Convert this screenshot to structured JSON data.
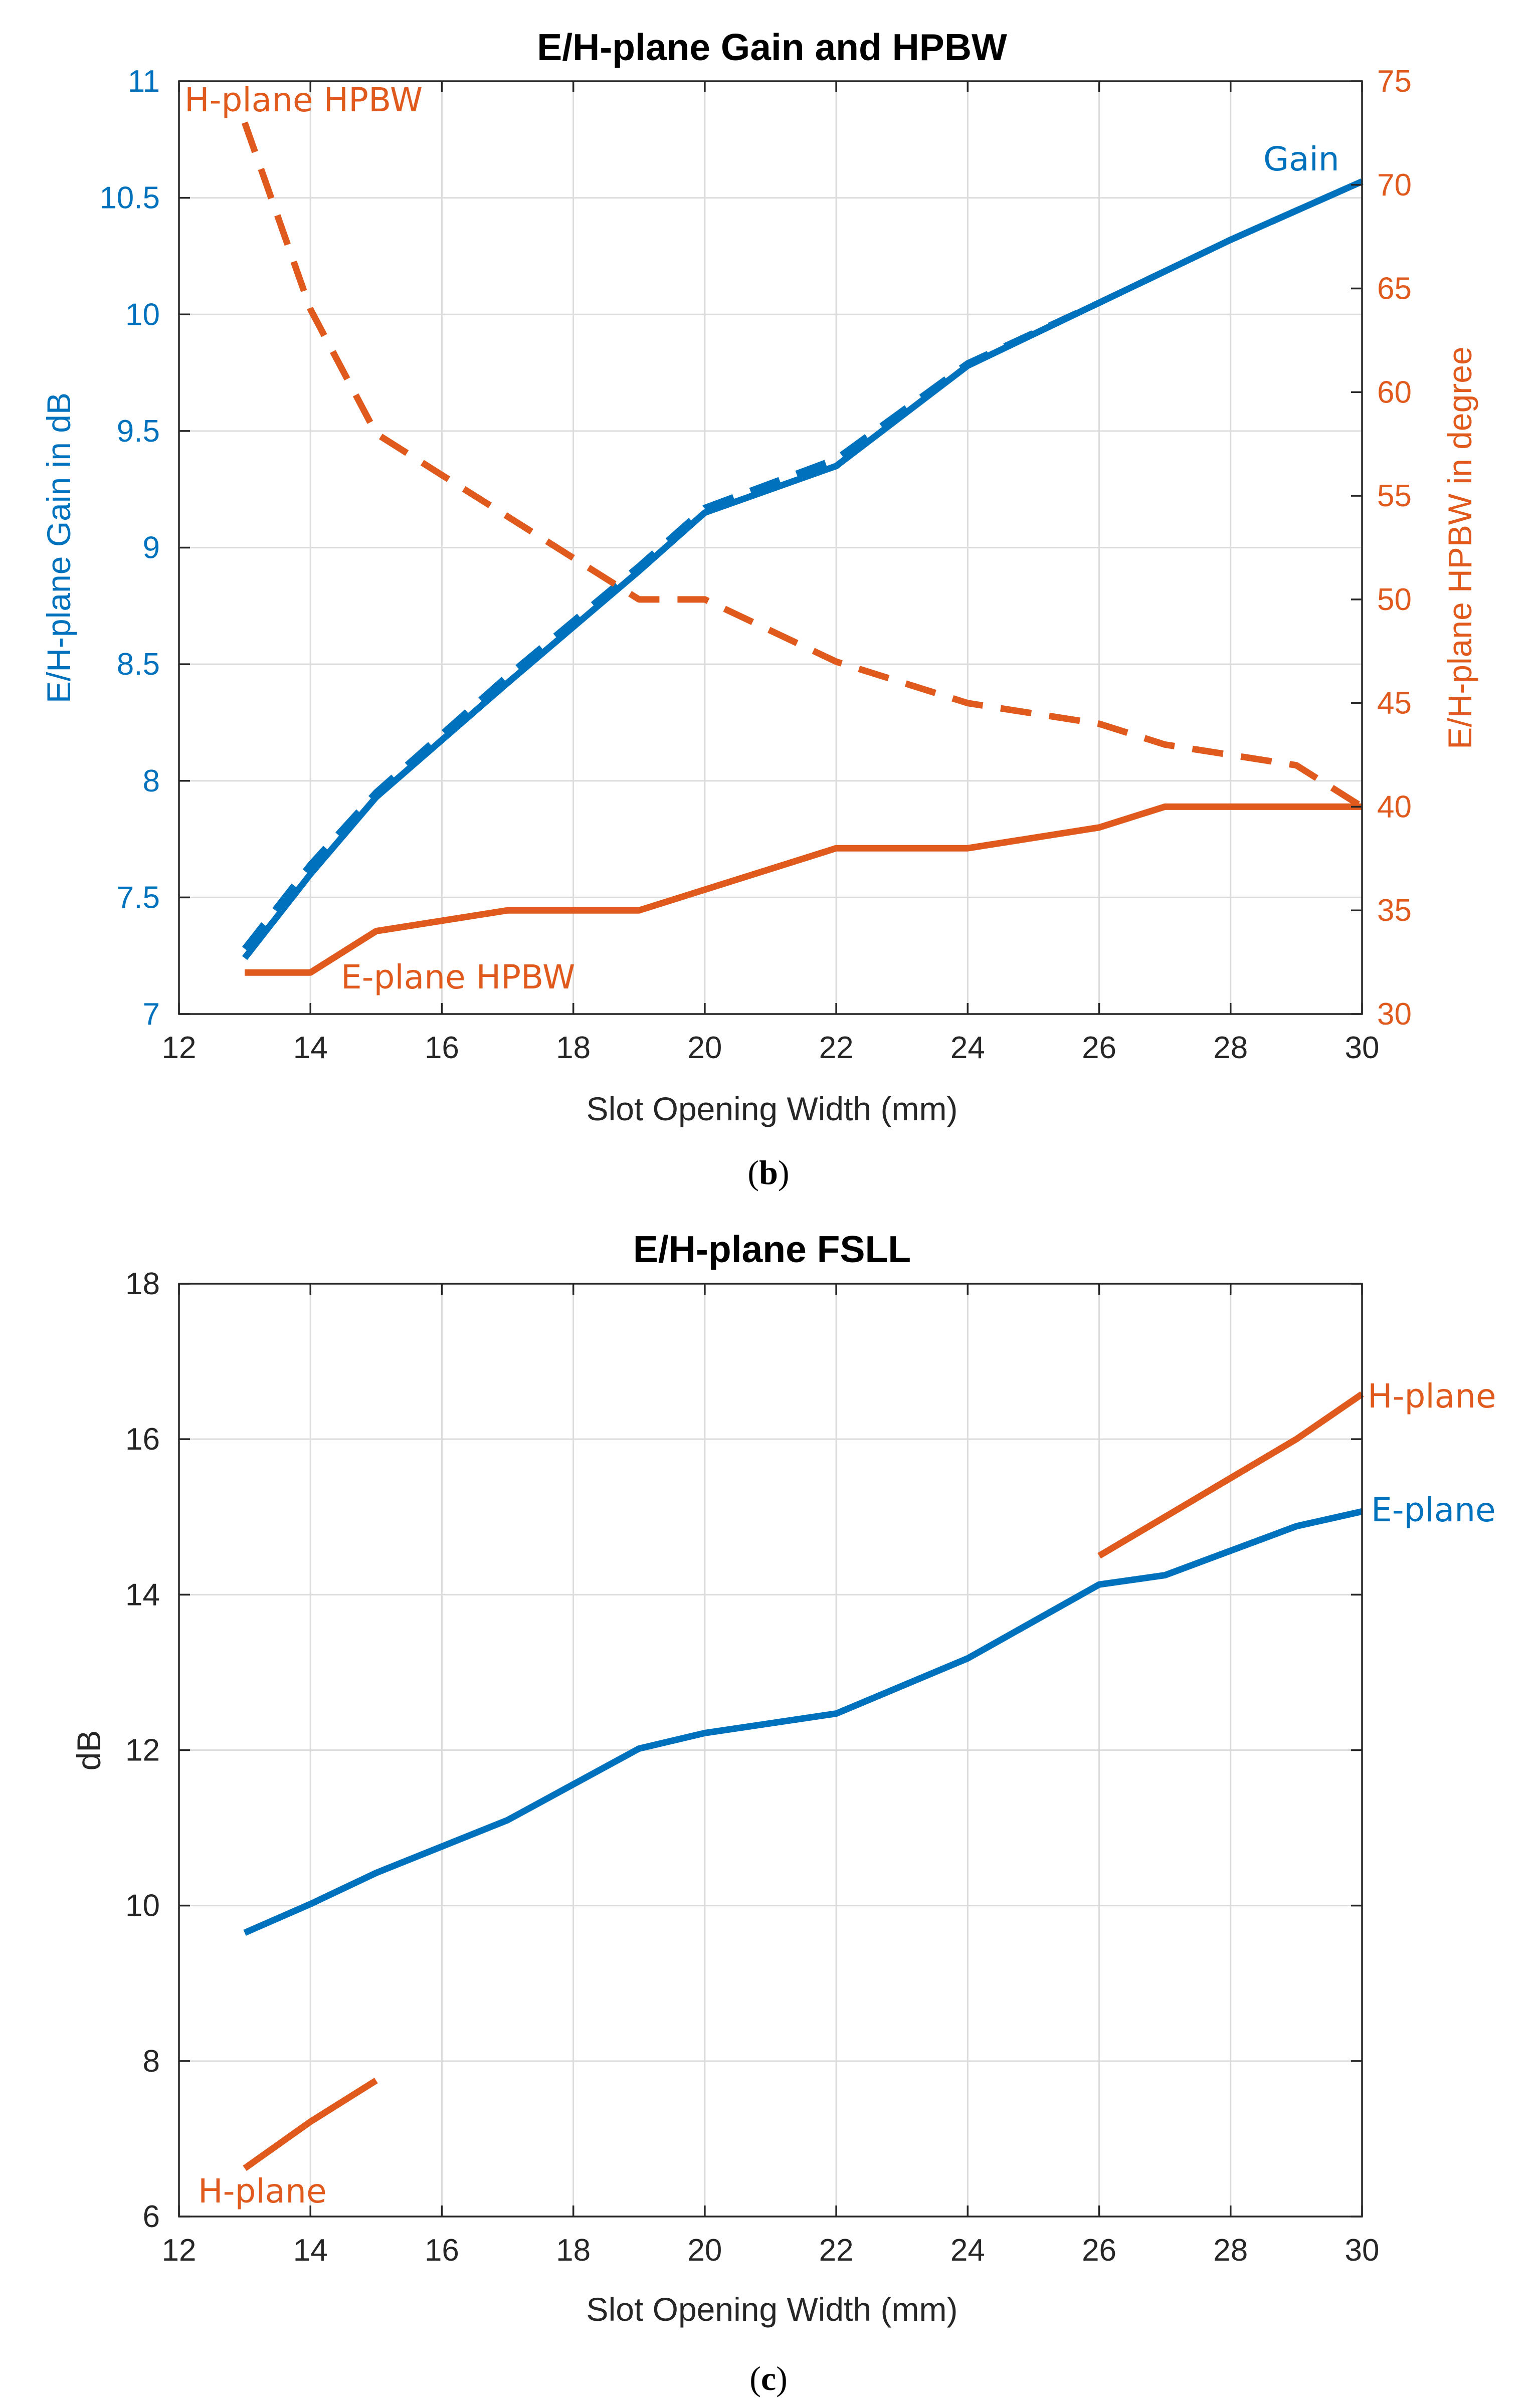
{
  "colors": {
    "blue": "#0072bd",
    "orange": "#e05a1e",
    "axis": "#262626",
    "grid": "#dcdcdc"
  },
  "chart_data": [
    {
      "type": "line",
      "caption": "(b)",
      "title": "E/H-plane Gain and HPBW",
      "xlabel": "Slot Opening Width (mm)",
      "ylabel_left": "E/H-plane Gain in dB",
      "ylabel_right": "E/H-plane HPBW in degree",
      "xlim": [
        12,
        30
      ],
      "ylim_left": [
        7,
        11
      ],
      "ylim_right": [
        30,
        75
      ],
      "xticks": [
        "12",
        "14",
        "16",
        "18",
        "20",
        "22",
        "24",
        "26",
        "28",
        "30"
      ],
      "yticks_left": [
        "7",
        "7.5",
        "8",
        "8.5",
        "9",
        "9.5",
        "10",
        "10.5",
        "11"
      ],
      "yticks_right": [
        "30",
        "35",
        "40",
        "45",
        "50",
        "55",
        "60",
        "65",
        "70",
        "75"
      ],
      "grid": true,
      "annotations": {
        "gain": "Gain",
        "h_plane_hpbw": "H-plane HPBW",
        "e_plane_hpbw": "E-plane HPBW"
      },
      "series": [
        {
          "name": "E-plane Gain",
          "axis": "left",
          "color": "#0072bd",
          "style": "solid",
          "x": [
            13,
            14,
            15,
            17,
            19,
            20,
            22,
            24,
            26,
            28,
            30
          ],
          "values": [
            7.24,
            7.6,
            7.93,
            8.42,
            8.9,
            9.15,
            9.35,
            9.78,
            10.05,
            10.32,
            10.57
          ]
        },
        {
          "name": "H-plane Gain",
          "axis": "left",
          "color": "#0072bd",
          "style": "dashed",
          "x": [
            13,
            14,
            15,
            17,
            19,
            20,
            22,
            24,
            26,
            28,
            30
          ],
          "values": [
            7.28,
            7.64,
            7.95,
            8.45,
            8.92,
            9.17,
            9.38,
            9.79,
            10.05,
            10.32,
            10.57
          ]
        },
        {
          "name": "H-plane HPBW",
          "axis": "right",
          "color": "#e05a1e",
          "style": "dashed",
          "x": [
            13,
            14,
            15,
            17,
            19,
            20,
            22,
            24,
            26,
            27,
            29,
            30
          ],
          "values": [
            73,
            64,
            58,
            54,
            50,
            50,
            47,
            45,
            44,
            43,
            42,
            40
          ]
        },
        {
          "name": "E-plane HPBW",
          "axis": "right",
          "color": "#e05a1e",
          "style": "solid",
          "x": [
            13,
            14,
            15,
            17,
            19,
            22,
            24,
            26,
            27,
            30
          ],
          "values": [
            32,
            32,
            34,
            35,
            35,
            38,
            38,
            39,
            40,
            40
          ]
        }
      ]
    },
    {
      "type": "line",
      "caption": "(c)",
      "title": "E/H-plane FSLL",
      "xlabel": "Slot Opening Width (mm)",
      "ylabel": "dB",
      "xlim": [
        12,
        30
      ],
      "ylim": [
        6,
        18
      ],
      "xticks": [
        "12",
        "14",
        "16",
        "18",
        "20",
        "22",
        "24",
        "26",
        "28",
        "30"
      ],
      "yticks": [
        "6",
        "8",
        "10",
        "12",
        "14",
        "16",
        "18"
      ],
      "grid": true,
      "annotations": {
        "h_plane_top": "H-plane",
        "e_plane": "E-plane",
        "h_plane_bottom": "H-plane"
      },
      "series": [
        {
          "name": "E-plane",
          "color": "#0072bd",
          "style": "solid",
          "x": [
            13,
            14,
            15,
            17,
            19,
            20,
            22,
            24,
            26,
            27,
            29,
            30
          ],
          "values": [
            9.65,
            10.02,
            10.42,
            11.1,
            12.02,
            12.22,
            12.47,
            13.18,
            14.13,
            14.25,
            14.88,
            15.07
          ]
        },
        {
          "name": "H-plane (low)",
          "color": "#e05a1e",
          "style": "solid",
          "x": [
            13,
            14,
            15
          ],
          "values": [
            6.62,
            7.22,
            7.75
          ]
        },
        {
          "name": "H-plane (high)",
          "color": "#e05a1e",
          "style": "solid",
          "x": [
            26,
            27,
            29,
            30
          ],
          "values": [
            14.5,
            15.0,
            16.0,
            16.58
          ]
        }
      ]
    }
  ]
}
